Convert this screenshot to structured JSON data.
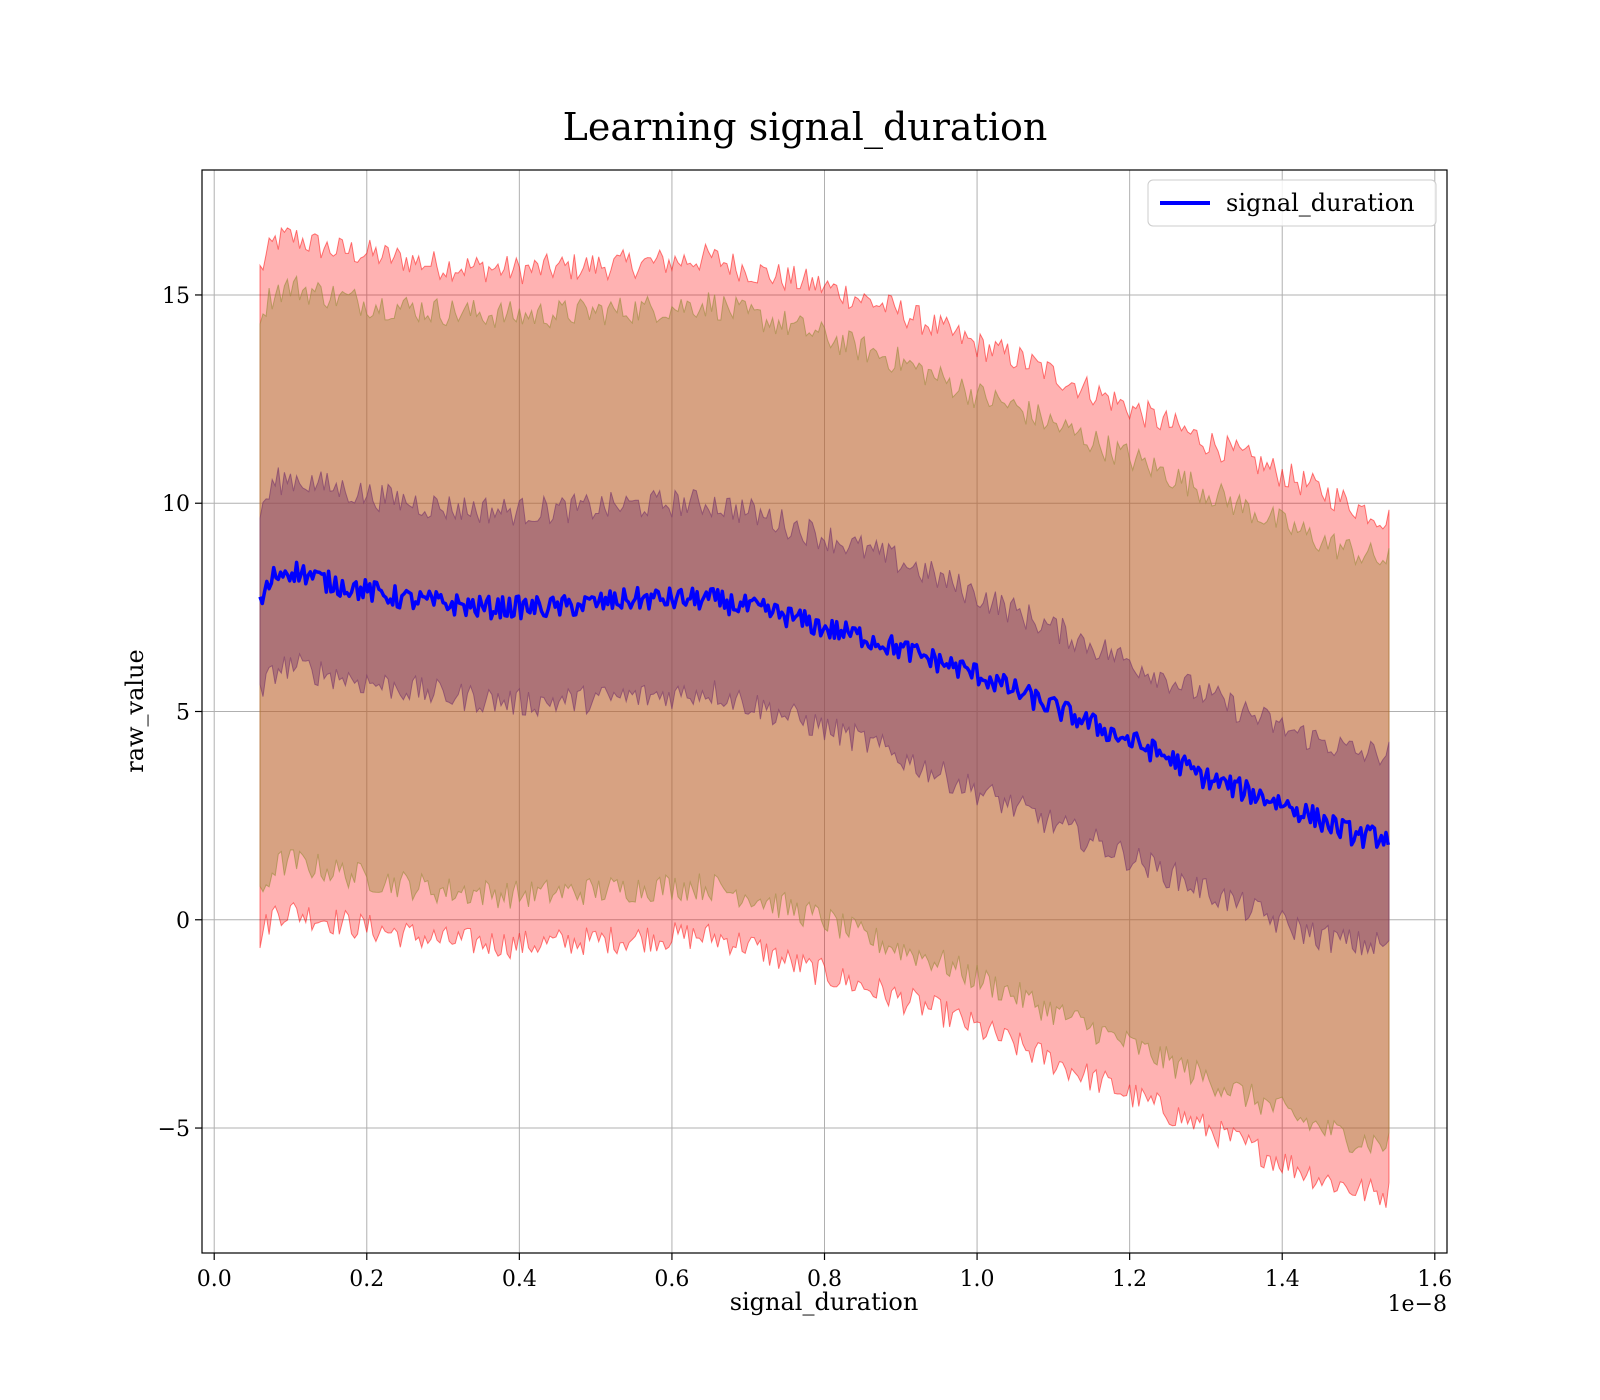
{
  "chart_data": {
    "type": "line",
    "title": "Learning signal_duration",
    "xlabel": "signal_duration",
    "ylabel": "raw_value",
    "x_offset_label": "1e−8",
    "xlim": [
      -0.016,
      1.616
    ],
    "ylim": [
      -8.0,
      18.0
    ],
    "x_ticks": [
      0.0,
      0.2,
      0.4,
      0.6,
      0.8,
      1.0,
      1.2,
      1.4,
      1.6
    ],
    "x_tick_labels": [
      "0.0",
      "0.2",
      "0.4",
      "0.6",
      "0.8",
      "1.0",
      "1.2",
      "1.4",
      "1.6"
    ],
    "y_ticks": [
      -5,
      0,
      5,
      10,
      15
    ],
    "y_tick_labels": [
      "−5",
      "0",
      "5",
      "10",
      "15"
    ],
    "grid": true,
    "legend_position": "top-right",
    "series": [
      {
        "name": "signal_duration",
        "color": "#0000ff",
        "x": [
          0.06,
          0.08,
          0.1,
          0.12,
          0.15,
          0.2,
          0.25,
          0.3,
          0.35,
          0.4,
          0.45,
          0.5,
          0.55,
          0.6,
          0.65,
          0.7,
          0.75,
          0.8,
          0.85,
          0.9,
          0.95,
          1.0,
          1.05,
          1.1,
          1.15,
          1.2,
          1.25,
          1.3,
          1.35,
          1.4,
          1.45,
          1.5,
          1.54
        ],
        "y": [
          7.6,
          8.3,
          8.4,
          8.3,
          8.1,
          7.9,
          7.7,
          7.6,
          7.5,
          7.5,
          7.5,
          7.6,
          7.7,
          7.7,
          7.7,
          7.5,
          7.3,
          7.0,
          6.8,
          6.5,
          6.2,
          5.9,
          5.5,
          5.1,
          4.7,
          4.3,
          3.9,
          3.4,
          3.1,
          2.8,
          2.4,
          2.0,
          2.0
        ]
      }
    ],
    "bands": [
      {
        "kind": "outer",
        "color": "#ff0000",
        "alpha": 0.3,
        "x": [
          0.06,
          0.08,
          0.1,
          0.15,
          0.2,
          0.3,
          0.4,
          0.5,
          0.6,
          0.65,
          0.7,
          0.75,
          0.8,
          0.85,
          0.9,
          0.95,
          1.0,
          1.05,
          1.1,
          1.15,
          1.2,
          1.25,
          1.3,
          1.35,
          1.4,
          1.45,
          1.5,
          1.54
        ],
        "upper": [
          15.6,
          16.3,
          16.4,
          16.1,
          16.0,
          15.7,
          15.6,
          15.7,
          15.8,
          15.9,
          15.6,
          15.4,
          15.2,
          14.9,
          14.6,
          14.2,
          13.8,
          13.5,
          13.1,
          12.7,
          12.3,
          11.9,
          11.5,
          11.1,
          10.7,
          10.3,
          9.9,
          9.6
        ],
        "lower": [
          -0.4,
          0.2,
          0.2,
          0.0,
          -0.2,
          -0.5,
          -0.6,
          -0.5,
          -0.4,
          -0.4,
          -0.6,
          -1.0,
          -1.3,
          -1.6,
          -1.9,
          -2.2,
          -2.6,
          -3.0,
          -3.4,
          -3.8,
          -4.2,
          -4.6,
          -5.0,
          -5.4,
          -5.8,
          -6.2,
          -6.5,
          -6.6
        ]
      },
      {
        "kind": "middle",
        "color": "#9a8a3a",
        "alpha": 0.4,
        "x": [
          0.06,
          0.08,
          0.1,
          0.15,
          0.2,
          0.3,
          0.4,
          0.5,
          0.6,
          0.65,
          0.7,
          0.75,
          0.8,
          0.85,
          0.9,
          0.95,
          1.0,
          1.05,
          1.1,
          1.15,
          1.2,
          1.25,
          1.3,
          1.35,
          1.4,
          1.45,
          1.5,
          1.54
        ],
        "upper": [
          14.6,
          15.1,
          15.2,
          15.0,
          14.8,
          14.6,
          14.5,
          14.6,
          14.7,
          14.8,
          14.5,
          14.3,
          14.0,
          13.7,
          13.4,
          13.0,
          12.6,
          12.3,
          11.9,
          11.5,
          11.1,
          10.7,
          10.3,
          9.9,
          9.5,
          9.1,
          8.8,
          8.6
        ],
        "lower": [
          0.6,
          1.3,
          1.4,
          1.2,
          1.0,
          0.7,
          0.6,
          0.7,
          0.8,
          0.8,
          0.6,
          0.3,
          0.0,
          -0.4,
          -0.7,
          -1.0,
          -1.4,
          -1.8,
          -2.2,
          -2.6,
          -3.0,
          -3.4,
          -3.8,
          -4.2,
          -4.6,
          -5.0,
          -5.3,
          -5.4
        ]
      },
      {
        "kind": "inner",
        "color": "#7b3a6b",
        "alpha": 0.45,
        "x": [
          0.06,
          0.08,
          0.1,
          0.15,
          0.2,
          0.3,
          0.4,
          0.5,
          0.6,
          0.65,
          0.7,
          0.75,
          0.8,
          0.85,
          0.9,
          0.95,
          1.0,
          1.05,
          1.1,
          1.15,
          1.2,
          1.25,
          1.3,
          1.35,
          1.4,
          1.45,
          1.5,
          1.54
        ],
        "upper": [
          9.8,
          10.5,
          10.6,
          10.4,
          10.2,
          9.9,
          9.8,
          9.9,
          10.0,
          10.0,
          9.8,
          9.5,
          9.2,
          8.9,
          8.6,
          8.2,
          7.8,
          7.4,
          7.0,
          6.6,
          6.2,
          5.8,
          5.4,
          5.0,
          4.6,
          4.3,
          4.0,
          4.0
        ],
        "lower": [
          5.4,
          6.0,
          6.1,
          5.9,
          5.7,
          5.4,
          5.2,
          5.3,
          5.4,
          5.5,
          5.2,
          4.9,
          4.6,
          4.3,
          3.9,
          3.5,
          3.1,
          2.7,
          2.3,
          1.9,
          1.5,
          1.1,
          0.7,
          0.3,
          -0.1,
          -0.4,
          -0.6,
          -0.6
        ]
      }
    ]
  }
}
